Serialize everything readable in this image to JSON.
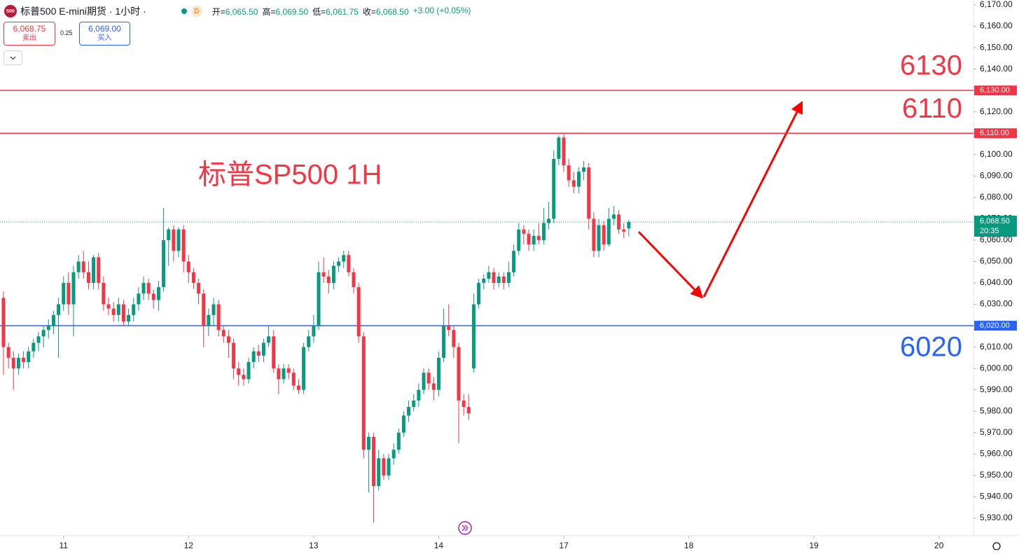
{
  "header": {
    "logo": "500",
    "title": "标普500 E-mini期货 · 1小时 ·",
    "badge": "D",
    "ohlc": [
      {
        "k": "开=",
        "v": "6,065.50"
      },
      {
        "k": "高=",
        "v": "6,069.50"
      },
      {
        "k": "低=",
        "v": "6,061.75"
      },
      {
        "k": "收=",
        "v": "6,068.50"
      }
    ],
    "change": "+3.00 (+0.05%)"
  },
  "trade": {
    "sell": "6,068.75",
    "sell_label": "卖出",
    "spread": "0.25",
    "buy": "6,069.00",
    "buy_label": "买入"
  },
  "chart_data": {
    "type": "candlestick",
    "annotation": "标普SP500 1H",
    "up_color": "#089981",
    "down_color": "#f23645",
    "ylim": [
      5921.8,
      6172.3
    ],
    "xlim": [
      -0.7,
      193.9
    ],
    "yticks": [
      {
        "value": 6170,
        "label": "6,170.00"
      },
      {
        "value": 6160,
        "label": "6,160.00"
      },
      {
        "value": 6150,
        "label": "6,150.00"
      },
      {
        "value": 6140,
        "label": "6,140.00"
      },
      {
        "value": 6130,
        "label": "6,130.00"
      },
      {
        "value": 6120,
        "label": "6,120.00"
      },
      {
        "value": 6110,
        "label": "6,110.00"
      },
      {
        "value": 6100,
        "label": "6,100.00"
      },
      {
        "value": 6090,
        "label": "6,090.00"
      },
      {
        "value": 6080,
        "label": "6,080.00"
      },
      {
        "value": 6070,
        "label": "6,070.00"
      },
      {
        "value": 6060,
        "label": "6,060.00"
      },
      {
        "value": 6050,
        "label": "6,050.00"
      },
      {
        "value": 6040,
        "label": "6,040.00"
      },
      {
        "value": 6030,
        "label": "6,030.00"
      },
      {
        "value": 6020,
        "label": "6,020.00"
      },
      {
        "value": 6010,
        "label": "6,010.00"
      },
      {
        "value": 6000,
        "label": "6,000.00"
      },
      {
        "value": 5990,
        "label": "5,990.00"
      },
      {
        "value": 5980,
        "label": "5,980.00"
      },
      {
        "value": 5970,
        "label": "5,970.00"
      },
      {
        "value": 5960,
        "label": "5,960.00"
      },
      {
        "value": 5950,
        "label": "5,950.00"
      },
      {
        "value": 5940,
        "label": "5,940.00"
      },
      {
        "value": 5930,
        "label": "5,930.00"
      }
    ],
    "xticks": [
      {
        "value": 12,
        "label": "11"
      },
      {
        "value": 37,
        "label": "12"
      },
      {
        "value": 62,
        "label": "13"
      },
      {
        "value": 87,
        "label": "14"
      },
      {
        "value": 112,
        "label": "17"
      },
      {
        "value": 137,
        "label": "18"
      },
      {
        "value": 162,
        "label": "19"
      },
      {
        "value": 187,
        "label": "20"
      }
    ],
    "levels": [
      {
        "value": 6130,
        "axis_label": "6,130.00",
        "label": "6130",
        "color": "#f23645"
      },
      {
        "value": 6110,
        "axis_label": "6,110.00",
        "label": "6110",
        "color": "#f23645"
      },
      {
        "value": 6020,
        "axis_label": "6,020.00",
        "label": "6020",
        "color": "#2962ff"
      }
    ],
    "last_price": {
      "value": 6068.5,
      "label": "6,068.50",
      "countdown": "20:35",
      "color": "#089981"
    },
    "candles": [
      [
        6033,
        6036,
        5997,
        6010
      ],
      [
        6010,
        6012,
        6000,
        6005
      ],
      [
        6005,
        6008,
        5990,
        6000
      ],
      [
        6000,
        6007,
        5997,
        6005
      ],
      [
        6005,
        6008,
        6000,
        6003
      ],
      [
        6003,
        6010,
        6000,
        6008
      ],
      [
        6008,
        6014,
        6005,
        6012
      ],
      [
        6012,
        6017,
        6008,
        6015
      ],
      [
        6015,
        6020,
        6010,
        6018
      ],
      [
        6018,
        6023,
        6014,
        6020
      ],
      [
        6020,
        6027,
        6016,
        6025
      ],
      [
        6025,
        6033,
        6005,
        6030
      ],
      [
        6030,
        6043,
        6027,
        6040
      ],
      [
        6040,
        6045,
        6025,
        6030
      ],
      [
        6030,
        6048,
        6015,
        6045
      ],
      [
        6045,
        6053,
        6042,
        6050
      ],
      [
        6050,
        6055,
        6042,
        6045
      ],
      [
        6045,
        6050,
        6037,
        6040
      ],
      [
        6040,
        6053,
        6037,
        6052
      ],
      [
        6052,
        6054,
        6037,
        6040
      ],
      [
        6040,
        6043,
        6027,
        6030
      ],
      [
        6030,
        6033,
        6025,
        6028
      ],
      [
        6028,
        6031,
        6022,
        6025
      ],
      [
        6025,
        6033,
        6022,
        6030
      ],
      [
        6030,
        6032,
        6020,
        6022
      ],
      [
        6022,
        6028,
        6020,
        6025
      ],
      [
        6025,
        6033,
        6022,
        6030
      ],
      [
        6030,
        6038,
        6027,
        6035
      ],
      [
        6035,
        6043,
        6032,
        6040
      ],
      [
        6040,
        6042,
        6032,
        6035
      ],
      [
        6035,
        6037,
        6028,
        6032
      ],
      [
        6032,
        6041,
        6027,
        6038
      ],
      [
        6038,
        6075,
        6036,
        6060
      ],
      [
        6060,
        6066,
        6048,
        6065
      ],
      [
        6065,
        6067,
        6050,
        6055
      ],
      [
        6055,
        6066,
        6052,
        6065
      ],
      [
        6065,
        6067,
        6045,
        6050
      ],
      [
        6050,
        6053,
        6040,
        6045
      ],
      [
        6045,
        6047,
        6037,
        6040
      ],
      [
        6040,
        6042,
        6030,
        6035
      ],
      [
        6035,
        6037,
        6010,
        6020
      ],
      [
        6020,
        6028,
        6015,
        6025
      ],
      [
        6025,
        6033,
        6020,
        6030
      ],
      [
        6030,
        6032,
        6015,
        6018
      ],
      [
        6018,
        6020,
        6012,
        6015
      ],
      [
        6015,
        6018,
        6005,
        6012
      ],
      [
        6012,
        6014,
        5995,
        6000
      ],
      [
        6000,
        6003,
        5992,
        5997
      ],
      [
        5997,
        6000,
        5992,
        5995
      ],
      [
        5995,
        6005,
        5993,
        6003
      ],
      [
        6003,
        6010,
        6000,
        6008
      ],
      [
        6008,
        6011,
        6003,
        6006
      ],
      [
        6006,
        6014,
        6003,
        6012
      ],
      [
        6012,
        6020,
        6010,
        6015
      ],
      [
        6015,
        6018,
        5998,
        6000
      ],
      [
        6000,
        6002,
        5988,
        5995
      ],
      [
        5995,
        6002,
        5993,
        6000
      ],
      [
        6000,
        6002,
        5995,
        5998
      ],
      [
        5998,
        6000,
        5990,
        5992
      ],
      [
        5992,
        5995,
        5988,
        5990
      ],
      [
        5990,
        6012,
        5988,
        6010
      ],
      [
        6010,
        6018,
        6008,
        6015
      ],
      [
        6015,
        6025,
        6012,
        6020
      ],
      [
        6020,
        6050,
        6018,
        6045
      ],
      [
        6045,
        6052,
        6040,
        6043
      ],
      [
        6043,
        6046,
        6035,
        6040
      ],
      [
        6040,
        6050,
        6037,
        6048
      ],
      [
        6048,
        6052,
        6045,
        6050
      ],
      [
        6050,
        6055,
        6047,
        6053
      ],
      [
        6053,
        6055,
        6043,
        6045
      ],
      [
        6045,
        6047,
        6035,
        6038
      ],
      [
        6038,
        6040,
        6012,
        6015
      ],
      [
        6015,
        6017,
        5958,
        5962
      ],
      [
        5962,
        5970,
        5942,
        5968
      ],
      [
        5968,
        5970,
        5928,
        5945
      ],
      [
        5945,
        5962,
        5943,
        5958
      ],
      [
        5958,
        5960,
        5948,
        5950
      ],
      [
        5950,
        5960,
        5948,
        5958
      ],
      [
        5958,
        5965,
        5955,
        5962
      ],
      [
        5962,
        5972,
        5960,
        5970
      ],
      [
        5970,
        5980,
        5968,
        5978
      ],
      [
        5978,
        5985,
        5975,
        5982
      ],
      [
        5982,
        5988,
        5980,
        5985
      ],
      [
        5985,
        5993,
        5982,
        5990
      ],
      [
        5990,
        6000,
        5988,
        5998
      ],
      [
        5998,
        6000,
        5990,
        5993
      ],
      [
        5993,
        5996,
        5985,
        5990
      ],
      [
        5990,
        6008,
        5987,
        6005
      ],
      [
        6005,
        6028,
        6003,
        6020
      ],
      [
        6020,
        6030,
        6015,
        6018
      ],
      [
        6018,
        6020,
        6005,
        6010
      ],
      [
        6010,
        6012,
        5965,
        5985
      ],
      [
        5985,
        5988,
        5978,
        5982
      ],
      [
        5982,
        5988,
        5976,
        5979
      ],
      [
        6000,
        6035,
        5998,
        6030
      ],
      [
        6030,
        6042,
        6028,
        6040
      ],
      [
        6040,
        6044,
        6037,
        6042
      ],
      [
        6042,
        6048,
        6040,
        6045
      ],
      [
        6045,
        6047,
        6037,
        6040
      ],
      [
        6040,
        6045,
        6038,
        6043
      ],
      [
        6043,
        6045,
        6037,
        6040
      ],
      [
        6040,
        6050,
        6038,
        6045
      ],
      [
        6045,
        6058,
        6043,
        6055
      ],
      [
        6055,
        6068,
        6053,
        6065
      ],
      [
        6065,
        6067,
        6058,
        6063
      ],
      [
        6063,
        6065,
        6055,
        6058
      ],
      [
        6058,
        6065,
        6055,
        6062
      ],
      [
        6062,
        6068,
        6058,
        6060
      ],
      [
        6060,
        6075,
        6058,
        6068
      ],
      [
        6068,
        6078,
        6065,
        6070
      ],
      [
        6070,
        6102,
        6068,
        6098
      ],
      [
        6098,
        6109,
        6095,
        6108
      ],
      [
        6108,
        6110,
        6092,
        6095
      ],
      [
        6095,
        6098,
        6085,
        6088
      ],
      [
        6088,
        6092,
        6082,
        6085
      ],
      [
        6085,
        6094,
        6082,
        6092
      ],
      [
        6092,
        6097,
        6088,
        6094
      ],
      [
        6094,
        6096,
        6065,
        6070
      ],
      [
        6070,
        6073,
        6052,
        6055
      ],
      [
        6055,
        6070,
        6052,
        6067
      ],
      [
        6067,
        6069,
        6055,
        6058
      ],
      [
        6058,
        6075,
        6057,
        6070
      ],
      [
        6070,
        6076,
        6067,
        6072
      ],
      [
        6072,
        6074,
        6063,
        6065
      ],
      [
        6065,
        6068,
        6061,
        6064
      ],
      [
        6065.5,
        6069.5,
        6061.75,
        6068.5
      ]
    ]
  }
}
